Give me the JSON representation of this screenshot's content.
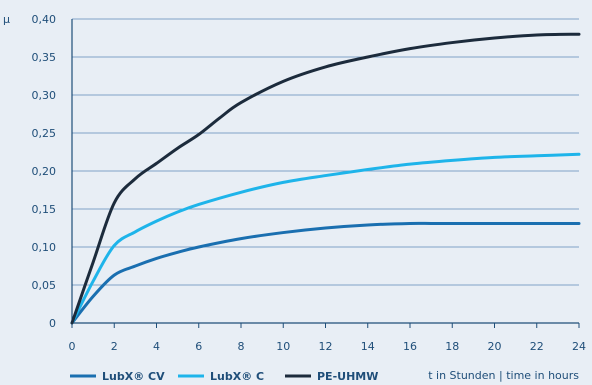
{
  "chart_data": {
    "type": "line",
    "ylabel": "µ",
    "xlabel": "t in Stunden | time in hours",
    "xlim": [
      0,
      24
    ],
    "ylim": [
      0,
      0.4
    ],
    "x_ticks": [
      "0",
      "2",
      "4",
      "6",
      "8",
      "10",
      "12",
      "14",
      "16",
      "18",
      "20",
      "22",
      "24"
    ],
    "y_ticks": [
      "0",
      "0,05",
      "0,10",
      "0,15",
      "0,20",
      "0,25",
      "0,30",
      "0,35",
      "0,40"
    ],
    "grid": "horizontal",
    "legend_position": "bottom-left",
    "series": [
      {
        "name": "LubX® CV",
        "color": "#1a6fb0",
        "x": [
          0,
          1,
          2,
          3,
          4,
          5,
          6,
          8,
          10,
          12,
          14,
          16,
          17,
          18,
          20,
          22,
          24
        ],
        "y": [
          0,
          0.035,
          0.063,
          0.075,
          0.085,
          0.093,
          0.1,
          0.111,
          0.119,
          0.125,
          0.129,
          0.131,
          0.131,
          0.131,
          0.131,
          0.131,
          0.131
        ]
      },
      {
        "name": "LubX® C",
        "color": "#1eb4ea",
        "x": [
          0,
          1,
          2,
          3,
          4,
          5,
          6,
          8,
          10,
          12,
          14,
          16,
          18,
          20,
          22,
          24
        ],
        "y": [
          0,
          0.055,
          0.102,
          0.12,
          0.134,
          0.146,
          0.156,
          0.172,
          0.185,
          0.194,
          0.202,
          0.209,
          0.214,
          0.218,
          0.22,
          0.222
        ]
      },
      {
        "name": "PE-UHMW",
        "color": "#1c2b3c",
        "x": [
          0,
          1,
          2,
          3,
          4,
          5,
          6,
          7,
          8,
          10,
          12,
          14,
          16,
          18,
          20,
          22,
          24
        ],
        "y": [
          0,
          0.08,
          0.158,
          0.19,
          0.21,
          0.23,
          0.248,
          0.27,
          0.29,
          0.318,
          0.337,
          0.35,
          0.361,
          0.369,
          0.375,
          0.379,
          0.38
        ]
      }
    ]
  }
}
